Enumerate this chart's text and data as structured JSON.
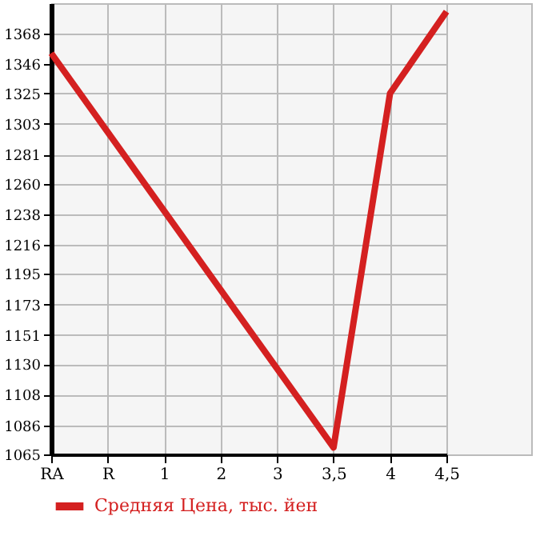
{
  "chart_data": {
    "type": "line",
    "categories": [
      "RA",
      "R",
      "1",
      "2",
      "3",
      "3,5",
      "4",
      "4,5"
    ],
    "series": [
      {
        "name": "Средняя Цена, тыс. йен",
        "color": "#d42020",
        "values": [
          1354,
          null,
          null,
          null,
          null,
          1070,
          1325,
          1384
        ]
      }
    ],
    "ylim": [
      1065,
      1390
    ],
    "yticks": [
      1065,
      1086,
      1108,
      1130,
      1151,
      1173,
      1195,
      1216,
      1238,
      1260,
      1281,
      1303,
      1325,
      1346,
      1368
    ],
    "grid": true,
    "legend": "bottom left",
    "line_style": "solid",
    "marker": "none"
  }
}
